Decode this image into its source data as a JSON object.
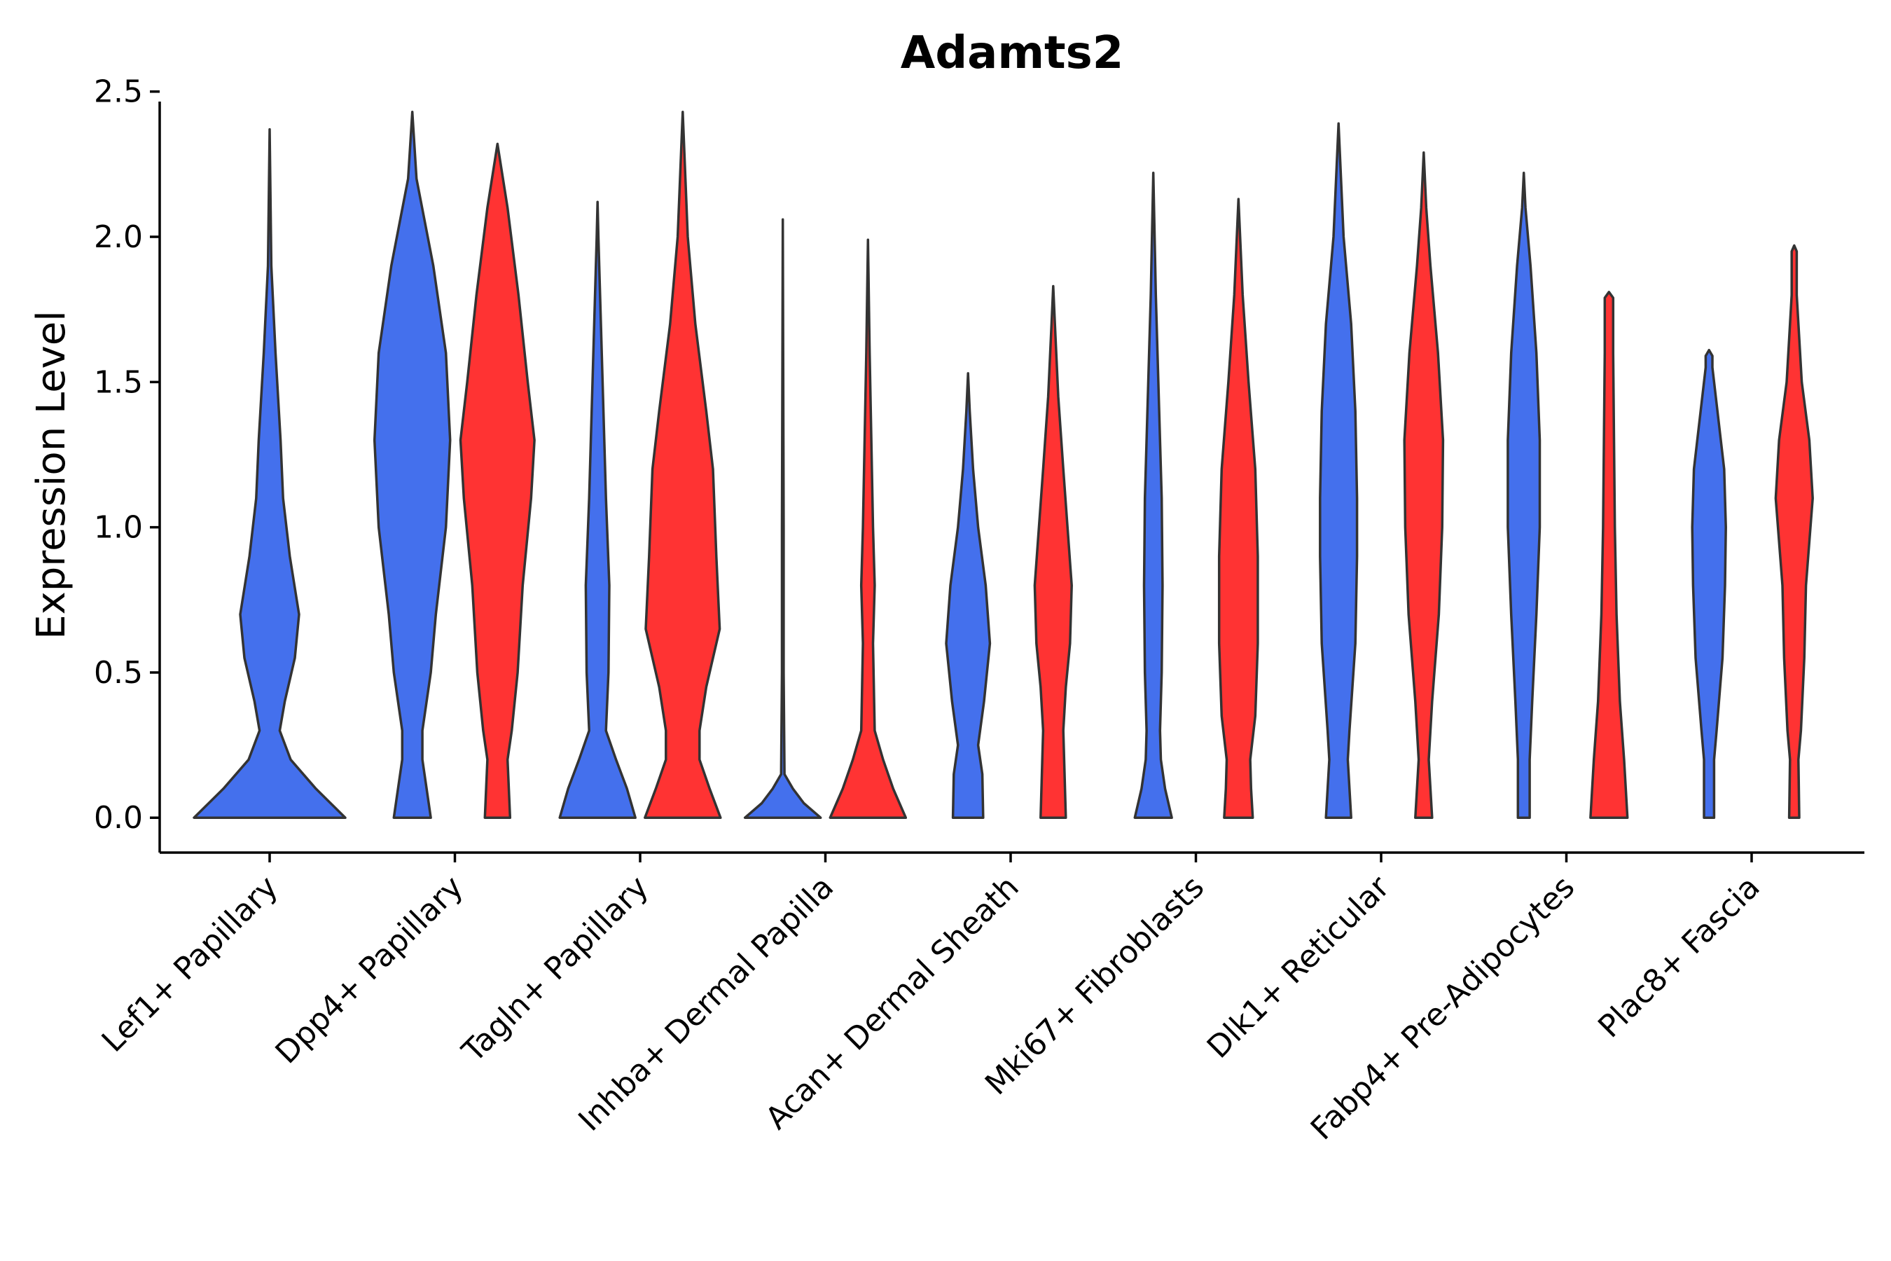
{
  "chart_data": {
    "type": "violin",
    "title": "Adamts2",
    "xlabel": "",
    "ylabel": "Expression Level",
    "ylim": [
      -0.12,
      2.55
    ],
    "yticks": [
      "0.0",
      "0.5",
      "1.0",
      "1.5",
      "2.0",
      "2.5"
    ],
    "grid": false,
    "legend": "none",
    "split_colors": [
      "#4470ED",
      "#FF3333"
    ],
    "categories": [
      "Lef1+ Papillary",
      "Dpp4+ Papillary",
      "Tagln+ Papillary",
      "Inhba+ Dermal Papilla",
      "Acan+ Dermal Sheath",
      "Mki67+ Fibroblasts",
      "Dlk1+ Reticular",
      "Fabp4+ Pre-Adipocytes",
      "Plac8+ Fascia"
    ],
    "violins": [
      {
        "category": "Lef1+ Papillary",
        "group": 1,
        "max": 2.37,
        "profile": [
          [
            0,
            0.9
          ],
          [
            0.1,
            0.55
          ],
          [
            0.2,
            0.25
          ],
          [
            0.3,
            0.12
          ],
          [
            0.4,
            0.18
          ],
          [
            0.55,
            0.3
          ],
          [
            0.7,
            0.35
          ],
          [
            0.9,
            0.24
          ],
          [
            1.1,
            0.16
          ],
          [
            1.3,
            0.13
          ],
          [
            1.6,
            0.07
          ],
          [
            1.9,
            0.02
          ],
          [
            2.37,
            0
          ]
        ]
      },
      {
        "category": "Dpp4+ Papillary",
        "group": 1,
        "max": 2.43,
        "profile": [
          [
            0,
            0.22
          ],
          [
            0.2,
            0.12
          ],
          [
            0.3,
            0.12
          ],
          [
            0.5,
            0.22
          ],
          [
            0.7,
            0.28
          ],
          [
            1.0,
            0.4
          ],
          [
            1.3,
            0.45
          ],
          [
            1.6,
            0.4
          ],
          [
            1.9,
            0.25
          ],
          [
            2.2,
            0.05
          ],
          [
            2.43,
            0
          ]
        ]
      },
      {
        "category": "Dpp4+ Papillary",
        "group": 2,
        "max": 2.32,
        "profile": [
          [
            0,
            0.15
          ],
          [
            0.2,
            0.12
          ],
          [
            0.3,
            0.17
          ],
          [
            0.5,
            0.24
          ],
          [
            0.8,
            0.3
          ],
          [
            1.1,
            0.4
          ],
          [
            1.3,
            0.44
          ],
          [
            1.5,
            0.36
          ],
          [
            1.8,
            0.25
          ],
          [
            2.1,
            0.12
          ],
          [
            2.32,
            0
          ]
        ]
      },
      {
        "category": "Tagln+ Papillary",
        "group": 1,
        "max": 2.12,
        "profile": [
          [
            0,
            0.45
          ],
          [
            0.1,
            0.35
          ],
          [
            0.2,
            0.22
          ],
          [
            0.3,
            0.1
          ],
          [
            0.5,
            0.13
          ],
          [
            0.8,
            0.14
          ],
          [
            1.1,
            0.1
          ],
          [
            1.4,
            0.07
          ],
          [
            1.7,
            0.04
          ],
          [
            2.0,
            0.01
          ],
          [
            2.12,
            0
          ]
        ]
      },
      {
        "category": "Tagln+ Papillary",
        "group": 2,
        "max": 2.43,
        "profile": [
          [
            0,
            0.45
          ],
          [
            0.1,
            0.32
          ],
          [
            0.2,
            0.2
          ],
          [
            0.3,
            0.2
          ],
          [
            0.45,
            0.28
          ],
          [
            0.65,
            0.44
          ],
          [
            0.9,
            0.4
          ],
          [
            1.2,
            0.36
          ],
          [
            1.4,
            0.28
          ],
          [
            1.7,
            0.15
          ],
          [
            2.0,
            0.06
          ],
          [
            2.43,
            0
          ]
        ]
      },
      {
        "category": "Inhba+ Dermal Papilla",
        "group": 1,
        "max": 2.06,
        "profile": [
          [
            0,
            0.45
          ],
          [
            0.05,
            0.25
          ],
          [
            0.1,
            0.12
          ],
          [
            0.15,
            0.02
          ],
          [
            0.5,
            0.01
          ],
          [
            1.0,
            0.01
          ],
          [
            2.06,
            0
          ]
        ]
      },
      {
        "category": "Inhba+ Dermal Papilla",
        "group": 2,
        "max": 1.99,
        "profile": [
          [
            0,
            0.45
          ],
          [
            0.1,
            0.3
          ],
          [
            0.2,
            0.18
          ],
          [
            0.3,
            0.08
          ],
          [
            0.6,
            0.06
          ],
          [
            0.8,
            0.08
          ],
          [
            1.0,
            0.06
          ],
          [
            1.3,
            0.04
          ],
          [
            1.6,
            0.02
          ],
          [
            1.99,
            0
          ]
        ]
      },
      {
        "category": "Acan+ Dermal Sheath",
        "group": 1,
        "max": 1.53,
        "profile": [
          [
            0,
            0.18
          ],
          [
            0.15,
            0.17
          ],
          [
            0.25,
            0.12
          ],
          [
            0.4,
            0.19
          ],
          [
            0.6,
            0.26
          ],
          [
            0.8,
            0.21
          ],
          [
            1.0,
            0.12
          ],
          [
            1.2,
            0.06
          ],
          [
            1.4,
            0.02
          ],
          [
            1.53,
            0
          ]
        ]
      },
      {
        "category": "Acan+ Dermal Sheath",
        "group": 2,
        "max": 1.83,
        "profile": [
          [
            0,
            0.15
          ],
          [
            0.2,
            0.13
          ],
          [
            0.3,
            0.12
          ],
          [
            0.45,
            0.15
          ],
          [
            0.6,
            0.2
          ],
          [
            0.8,
            0.22
          ],
          [
            1.0,
            0.17
          ],
          [
            1.2,
            0.12
          ],
          [
            1.45,
            0.06
          ],
          [
            1.7,
            0.02
          ],
          [
            1.83,
            0
          ]
        ]
      },
      {
        "category": "Mki67+ Fibroblasts",
        "group": 1,
        "max": 2.22,
        "profile": [
          [
            0,
            0.22
          ],
          [
            0.1,
            0.14
          ],
          [
            0.2,
            0.09
          ],
          [
            0.3,
            0.08
          ],
          [
            0.5,
            0.1
          ],
          [
            0.8,
            0.11
          ],
          [
            1.1,
            0.1
          ],
          [
            1.4,
            0.07
          ],
          [
            1.8,
            0.03
          ],
          [
            2.22,
            0
          ]
        ]
      },
      {
        "category": "Mki67+ Fibroblasts",
        "group": 2,
        "max": 2.13,
        "profile": [
          [
            0,
            0.17
          ],
          [
            0.1,
            0.15
          ],
          [
            0.2,
            0.14
          ],
          [
            0.35,
            0.2
          ],
          [
            0.6,
            0.23
          ],
          [
            0.9,
            0.23
          ],
          [
            1.2,
            0.2
          ],
          [
            1.5,
            0.12
          ],
          [
            1.8,
            0.05
          ],
          [
            2.13,
            0
          ]
        ]
      },
      {
        "category": "Dlk1+ Reticular",
        "group": 1,
        "max": 2.39,
        "profile": [
          [
            0,
            0.15
          ],
          [
            0.2,
            0.11
          ],
          [
            0.3,
            0.13
          ],
          [
            0.6,
            0.2
          ],
          [
            0.9,
            0.22
          ],
          [
            1.1,
            0.22
          ],
          [
            1.4,
            0.2
          ],
          [
            1.7,
            0.15
          ],
          [
            2.0,
            0.06
          ],
          [
            2.39,
            0
          ]
        ]
      },
      {
        "category": "Dlk1+ Reticular",
        "group": 2,
        "max": 2.29,
        "profile": [
          [
            0,
            0.1
          ],
          [
            0.2,
            0.06
          ],
          [
            0.4,
            0.1
          ],
          [
            0.7,
            0.18
          ],
          [
            1.0,
            0.22
          ],
          [
            1.3,
            0.23
          ],
          [
            1.6,
            0.17
          ],
          [
            1.9,
            0.08
          ],
          [
            2.1,
            0.03
          ],
          [
            2.29,
            0
          ]
        ]
      },
      {
        "category": "Fabp4+ Pre-Adipocytes",
        "group": 1,
        "max": 2.22,
        "profile": [
          [
            0,
            0.07
          ],
          [
            0.2,
            0.07
          ],
          [
            0.4,
            0.1
          ],
          [
            0.7,
            0.15
          ],
          [
            1.0,
            0.19
          ],
          [
            1.3,
            0.19
          ],
          [
            1.6,
            0.15
          ],
          [
            1.9,
            0.08
          ],
          [
            2.1,
            0.02
          ],
          [
            2.22,
            0
          ]
        ]
      },
      {
        "category": "Fabp4+ Pre-Adipocytes",
        "group": 2,
        "max": 1.81,
        "profile": [
          [
            0,
            0.22
          ],
          [
            0.2,
            0.18
          ],
          [
            0.4,
            0.13
          ],
          [
            0.7,
            0.09
          ],
          [
            1.0,
            0.07
          ],
          [
            1.3,
            0.06
          ],
          [
            1.6,
            0.05
          ],
          [
            1.79,
            0.05
          ],
          [
            1.81,
            0
          ]
        ]
      },
      {
        "category": "Plac8+ Fascia",
        "group": 1,
        "max": 1.61,
        "profile": [
          [
            0,
            0.06
          ],
          [
            0.2,
            0.06
          ],
          [
            0.3,
            0.09
          ],
          [
            0.55,
            0.16
          ],
          [
            0.8,
            0.19
          ],
          [
            1.0,
            0.2
          ],
          [
            1.2,
            0.18
          ],
          [
            1.4,
            0.1
          ],
          [
            1.55,
            0.04
          ],
          [
            1.59,
            0.04
          ],
          [
            1.61,
            0
          ]
        ]
      },
      {
        "category": "Plac8+ Fascia",
        "group": 2,
        "max": 1.97,
        "profile": [
          [
            0,
            0.06
          ],
          [
            0.2,
            0.05
          ],
          [
            0.3,
            0.08
          ],
          [
            0.55,
            0.12
          ],
          [
            0.8,
            0.14
          ],
          [
            1.1,
            0.22
          ],
          [
            1.3,
            0.18
          ],
          [
            1.5,
            0.09
          ],
          [
            1.8,
            0.03
          ],
          [
            1.95,
            0.03
          ],
          [
            1.97,
            0
          ]
        ]
      }
    ]
  }
}
